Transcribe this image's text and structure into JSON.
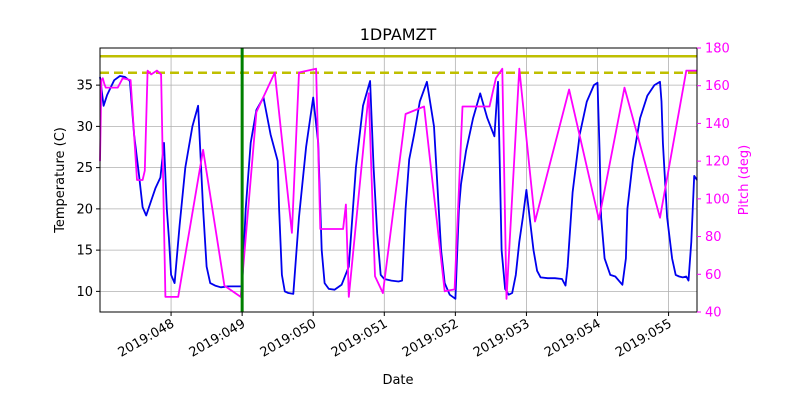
{
  "chart_data": {
    "type": "line",
    "title": "1DPAMZT",
    "xlabel": "Date",
    "ylabel_left": "Temperature (C)",
    "ylabel_right": "Pitch (deg)",
    "x_range": [
      47.0,
      55.4
    ],
    "ylim_left": [
      7.5,
      39.5
    ],
    "ylim_right": [
      40,
      180
    ],
    "left_ticks": [
      10,
      15,
      20,
      25,
      30,
      35
    ],
    "right_ticks": [
      40,
      60,
      80,
      100,
      120,
      140,
      160,
      180
    ],
    "x_ticks": [
      {
        "value": 48,
        "label": "2019:048"
      },
      {
        "value": 49,
        "label": "2019:049"
      },
      {
        "value": 50,
        "label": "2019:050"
      },
      {
        "value": 51,
        "label": "2019:051"
      },
      {
        "value": 52,
        "label": "2019:052"
      },
      {
        "value": 53,
        "label": "2019:053"
      },
      {
        "value": 54,
        "label": "2019:054"
      },
      {
        "value": 55,
        "label": "2019:055"
      }
    ],
    "grid": true,
    "colors": {
      "temperature": "#0000ee",
      "pitch": "#ff00ff",
      "limit": "#bfbf00",
      "now": "#008000",
      "right_axis": "#ff00ff"
    },
    "limit_lines": [
      {
        "y": 38.5,
        "style": "solid"
      },
      {
        "y": 36.5,
        "style": "dashed"
      }
    ],
    "vertical_line": {
      "x": 49.0
    },
    "series": [
      {
        "axis": "left",
        "color": "#0000ee",
        "x": [
          47.0,
          47.05,
          47.1,
          47.2,
          47.28,
          47.35,
          47.42,
          47.48,
          47.55,
          47.6,
          47.65,
          47.72,
          47.78,
          47.85,
          47.9,
          47.94,
          47.97,
          48.0,
          48.05,
          48.12,
          48.2,
          48.3,
          48.38,
          48.45,
          48.5,
          48.55,
          48.62,
          48.7,
          48.8,
          49.0,
          49.05,
          49.12,
          49.2,
          49.3,
          49.4,
          49.5,
          49.52,
          49.56,
          49.6,
          49.65,
          49.72,
          49.8,
          49.9,
          50.0,
          50.07,
          50.12,
          50.16,
          50.22,
          50.3,
          50.4,
          50.5,
          50.6,
          50.7,
          50.8,
          50.85,
          50.9,
          50.95,
          51.0,
          51.1,
          51.2,
          51.25,
          51.3,
          51.35,
          51.42,
          51.5,
          51.6,
          51.7,
          51.8,
          51.85,
          51.92,
          52.0,
          52.05,
          52.08,
          52.15,
          52.25,
          52.35,
          52.45,
          52.55,
          52.6,
          52.65,
          52.7,
          52.75,
          52.8,
          52.85,
          52.9,
          52.95,
          53.0,
          53.1,
          53.15,
          53.2,
          53.3,
          53.4,
          53.5,
          53.55,
          53.58,
          53.65,
          53.75,
          53.85,
          53.95,
          54.0,
          54.03,
          54.05,
          54.1,
          54.18,
          54.25,
          54.35,
          54.4,
          54.42,
          54.5,
          54.6,
          54.7,
          54.8,
          54.88,
          54.9,
          54.92,
          54.98,
          55.05,
          55.1,
          55.15,
          55.2,
          55.25,
          55.28,
          55.32,
          55.36,
          55.4
        ],
        "values": [
          36.0,
          32.5,
          33.8,
          35.6,
          36.1,
          36.0,
          35.5,
          29.0,
          24.0,
          20.2,
          19.2,
          21.0,
          22.5,
          23.8,
          28.0,
          20.0,
          16.5,
          12.0,
          11.0,
          18.0,
          25.0,
          30.0,
          32.5,
          20.0,
          13.0,
          11.0,
          10.7,
          10.5,
          10.6,
          10.6,
          20.0,
          28.0,
          32.0,
          33.5,
          29.0,
          25.8,
          20.0,
          12.0,
          10.0,
          9.8,
          9.7,
          19.0,
          27.5,
          33.5,
          28.0,
          15.0,
          11.0,
          10.3,
          10.2,
          10.8,
          13.0,
          25.0,
          32.5,
          35.5,
          25.0,
          17.0,
          12.0,
          11.5,
          11.3,
          11.2,
          11.3,
          20.0,
          26.0,
          29.0,
          33.0,
          35.4,
          30.0,
          15.0,
          11.0,
          9.6,
          9.1,
          20.0,
          23.0,
          27.0,
          31.0,
          34.0,
          31.0,
          28.8,
          35.4,
          15.0,
          10.3,
          9.6,
          9.8,
          12.0,
          16.0,
          19.0,
          22.3,
          15.0,
          12.5,
          11.7,
          11.6,
          11.6,
          11.5,
          10.7,
          13.0,
          22.0,
          29.0,
          33.0,
          35.0,
          35.3,
          27.0,
          19.0,
          14.0,
          12.0,
          11.8,
          10.8,
          14.0,
          20.0,
          26.0,
          31.0,
          33.7,
          35.0,
          35.4,
          33.0,
          28.0,
          19.0,
          14.0,
          12.0,
          11.8,
          11.7,
          11.8,
          11.3,
          16.0,
          24.0,
          23.5
        ]
      },
      {
        "axis": "right",
        "color": "#ff00ff",
        "x": [
          47.0,
          47.02,
          47.04,
          47.06,
          47.08,
          47.08,
          47.25,
          47.25,
          47.32,
          47.32,
          47.43,
          47.43,
          47.52,
          47.52,
          47.6,
          47.6,
          47.63,
          47.63,
          47.67,
          47.67,
          47.72,
          47.72,
          47.8,
          47.8,
          47.86,
          47.86,
          47.92,
          47.92,
          48.1,
          48.1,
          48.45,
          48.45,
          48.75,
          48.75,
          48.98,
          48.98,
          49.2,
          49.2,
          49.46,
          49.46,
          49.7,
          49.7,
          49.8,
          49.8,
          50.04,
          50.04,
          50.1,
          50.1,
          50.42,
          50.42,
          50.46,
          50.46,
          50.5,
          50.5,
          50.78,
          50.78,
          50.87,
          50.87,
          50.98,
          50.98,
          51.3,
          51.3,
          51.56,
          51.56,
          51.85,
          51.85,
          51.99,
          51.99,
          52.1,
          52.1,
          52.48,
          52.48,
          52.57,
          52.57,
          52.66,
          52.66,
          52.72,
          52.72,
          52.9,
          52.9,
          53.12,
          53.12,
          53.6,
          53.6,
          54.02,
          54.02,
          54.38,
          54.38,
          54.88,
          54.88,
          55.25,
          55.25,
          55.4
        ],
        "values": [
          120,
          163,
          164,
          161,
          159,
          159,
          159,
          159,
          164,
          164,
          163,
          163,
          110,
          110,
          110,
          110,
          115,
          115,
          168,
          168,
          166,
          166,
          168,
          168,
          166,
          166,
          48,
          48,
          48,
          48,
          126,
          126,
          54,
          54,
          48,
          48,
          146,
          146,
          167,
          167,
          82,
          82,
          167,
          167,
          169,
          169,
          84,
          84,
          84,
          84,
          97,
          97,
          48,
          48,
          156,
          156,
          59,
          59,
          50,
          50,
          145,
          145,
          149,
          149,
          51,
          51,
          52,
          52,
          149,
          149,
          149,
          149,
          164,
          164,
          169,
          169,
          47,
          47,
          169,
          169,
          88,
          88,
          158,
          158,
          89,
          89,
          159,
          159,
          90,
          90,
          168,
          168,
          168
        ]
      }
    ]
  }
}
